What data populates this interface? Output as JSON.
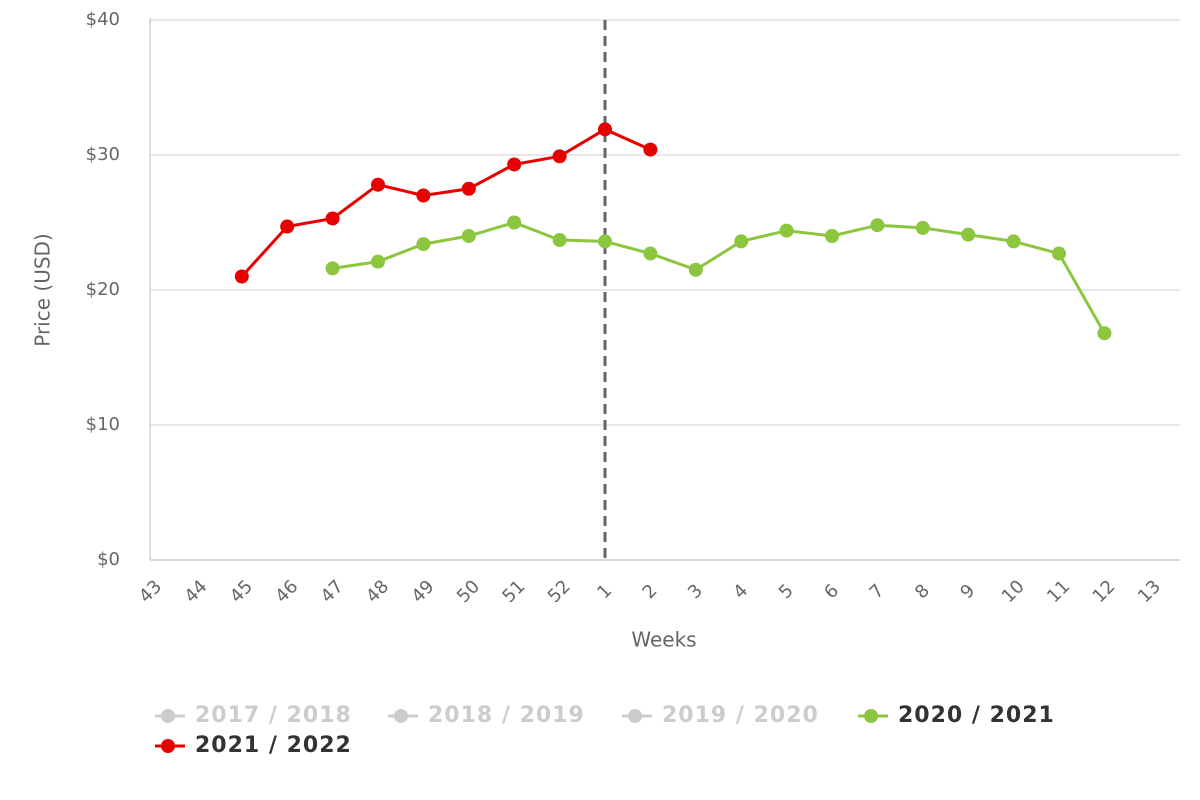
{
  "chart_data": {
    "type": "line",
    "x_label": "Weeks",
    "y_label": "Price (USD)",
    "categories": [
      "43",
      "44",
      "45",
      "46",
      "47",
      "48",
      "49",
      "50",
      "51",
      "52",
      "1",
      "2",
      "3",
      "4",
      "5",
      "6",
      "7",
      "8",
      "9",
      "10",
      "11",
      "12",
      "13"
    ],
    "series": [
      {
        "name": "2017 / 2018",
        "color": "#cccccc",
        "visible": false,
        "values": [
          null,
          null,
          null,
          null,
          null,
          null,
          null,
          null,
          null,
          null,
          null,
          null,
          null,
          null,
          null,
          null,
          null,
          null,
          null,
          null,
          null,
          null,
          null
        ]
      },
      {
        "name": "2018 / 2019",
        "color": "#cccccc",
        "visible": false,
        "values": [
          null,
          null,
          null,
          null,
          null,
          null,
          null,
          null,
          null,
          null,
          null,
          null,
          null,
          null,
          null,
          null,
          null,
          null,
          null,
          null,
          null,
          null,
          null
        ]
      },
      {
        "name": "2019 / 2020",
        "color": "#cccccc",
        "visible": false,
        "values": [
          null,
          null,
          null,
          null,
          null,
          null,
          null,
          null,
          null,
          null,
          null,
          null,
          null,
          null,
          null,
          null,
          null,
          null,
          null,
          null,
          null,
          null,
          null
        ]
      },
      {
        "name": "2020 / 2021",
        "color": "#8cc63f",
        "visible": true,
        "values": [
          null,
          null,
          null,
          null,
          21.6,
          22.1,
          23.4,
          24.0,
          25.0,
          23.7,
          23.6,
          22.7,
          21.5,
          23.6,
          24.4,
          24.0,
          24.8,
          24.6,
          24.1,
          23.6,
          22.7,
          16.8,
          null
        ]
      },
      {
        "name": "2021 / 2022",
        "color": "#e60000",
        "visible": true,
        "values": [
          null,
          null,
          21.0,
          24.7,
          25.3,
          27.8,
          27.0,
          27.5,
          29.3,
          29.9,
          31.9,
          30.4,
          null,
          null,
          null,
          null,
          null,
          null,
          null,
          null,
          null,
          null,
          null
        ]
      }
    ],
    "ylim": [
      0,
      40
    ],
    "yticks": [
      {
        "value": 0,
        "label": "$0"
      },
      {
        "value": 10,
        "label": "$10"
      },
      {
        "value": 20,
        "label": "$20"
      },
      {
        "value": 30,
        "label": "$30"
      },
      {
        "value": 40,
        "label": "$40"
      }
    ],
    "grid": true,
    "legend": "bottom",
    "reference_line": {
      "category": "1",
      "style": "dashed",
      "color": "#666666"
    }
  }
}
